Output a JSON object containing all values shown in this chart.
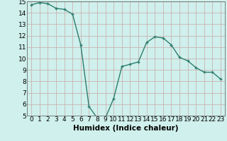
{
  "x": [
    0,
    1,
    2,
    3,
    4,
    5,
    6,
    7,
    8,
    9,
    10,
    11,
    12,
    13,
    14,
    15,
    16,
    17,
    18,
    19,
    20,
    21,
    22,
    23
  ],
  "y": [
    14.7,
    14.9,
    14.8,
    14.4,
    14.3,
    13.9,
    11.2,
    5.8,
    4.8,
    4.8,
    6.5,
    9.3,
    9.5,
    9.7,
    11.4,
    11.9,
    11.8,
    11.2,
    10.1,
    9.8,
    9.2,
    8.8,
    8.8,
    8.2
  ],
  "xlabel": "Humidex (Indice chaleur)",
  "xlim": [
    -0.5,
    23.5
  ],
  "ylim": [
    5,
    15
  ],
  "yticks": [
    5,
    6,
    7,
    8,
    9,
    10,
    11,
    12,
    13,
    14,
    15
  ],
  "xticks": [
    0,
    1,
    2,
    3,
    4,
    5,
    6,
    7,
    8,
    9,
    10,
    11,
    12,
    13,
    14,
    15,
    16,
    17,
    18,
    19,
    20,
    21,
    22,
    23
  ],
  "line_color": "#2e7d6e",
  "bg_color": "#cff0ec",
  "grid_color": "#c8a8a8",
  "label_fontsize": 7.5,
  "tick_fontsize": 6.5
}
